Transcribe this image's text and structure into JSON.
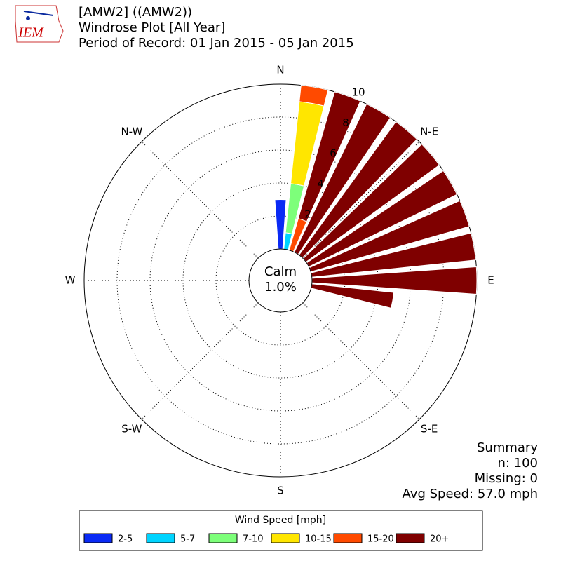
{
  "logo": {
    "text": "IEM"
  },
  "chart_data": {
    "type": "windrose",
    "title": [
      "[AMW2] ((AMW2))",
      "Windrose Plot [All Year]",
      "Period of Record: 01 Jan 2015 - 05 Jan 2015"
    ],
    "compass_labels": [
      "N",
      "N-E",
      "E",
      "S-E",
      "S",
      "S-W",
      "W",
      "N-W"
    ],
    "directions": [
      0,
      10,
      20,
      30,
      40,
      50,
      60,
      70,
      80,
      90,
      100
    ],
    "rlim": [
      0,
      10
    ],
    "rticks": [
      2,
      4,
      6,
      8,
      10
    ],
    "calm": {
      "label": "Calm",
      "value": 1.0,
      "value_label": "1.0%"
    },
    "legend_title": "Wind Speed [mph]",
    "series": [
      {
        "name": "2-5",
        "color": "#0a2af5",
        "values": [
          3,
          0,
          0,
          0,
          0,
          0,
          0,
          0,
          0,
          0,
          0
        ]
      },
      {
        "name": "5-7",
        "color": "#00d4ff",
        "values": [
          0,
          1,
          0,
          0,
          0,
          0,
          0,
          0,
          0,
          0,
          0
        ]
      },
      {
        "name": "7-10",
        "color": "#7dff7a",
        "values": [
          0,
          3,
          0,
          0,
          0,
          0,
          0,
          0,
          0,
          0,
          0
        ]
      },
      {
        "name": "10-15",
        "color": "#ffe600",
        "values": [
          0,
          5,
          0,
          0,
          0,
          0,
          0,
          0,
          0,
          0,
          0
        ]
      },
      {
        "name": "15-20",
        "color": "#ff4a00",
        "values": [
          0,
          1,
          2,
          0,
          0,
          0,
          0,
          0,
          0,
          0,
          0
        ]
      },
      {
        "name": "20+",
        "color": "#7f0000",
        "values": [
          0,
          0,
          8,
          10,
          10,
          10,
          10,
          10,
          10,
          10,
          5
        ]
      }
    ],
    "summary": [
      "Summary",
      "n: 100",
      "Missing: 0",
      "Avg Speed: 57.0 mph"
    ]
  }
}
